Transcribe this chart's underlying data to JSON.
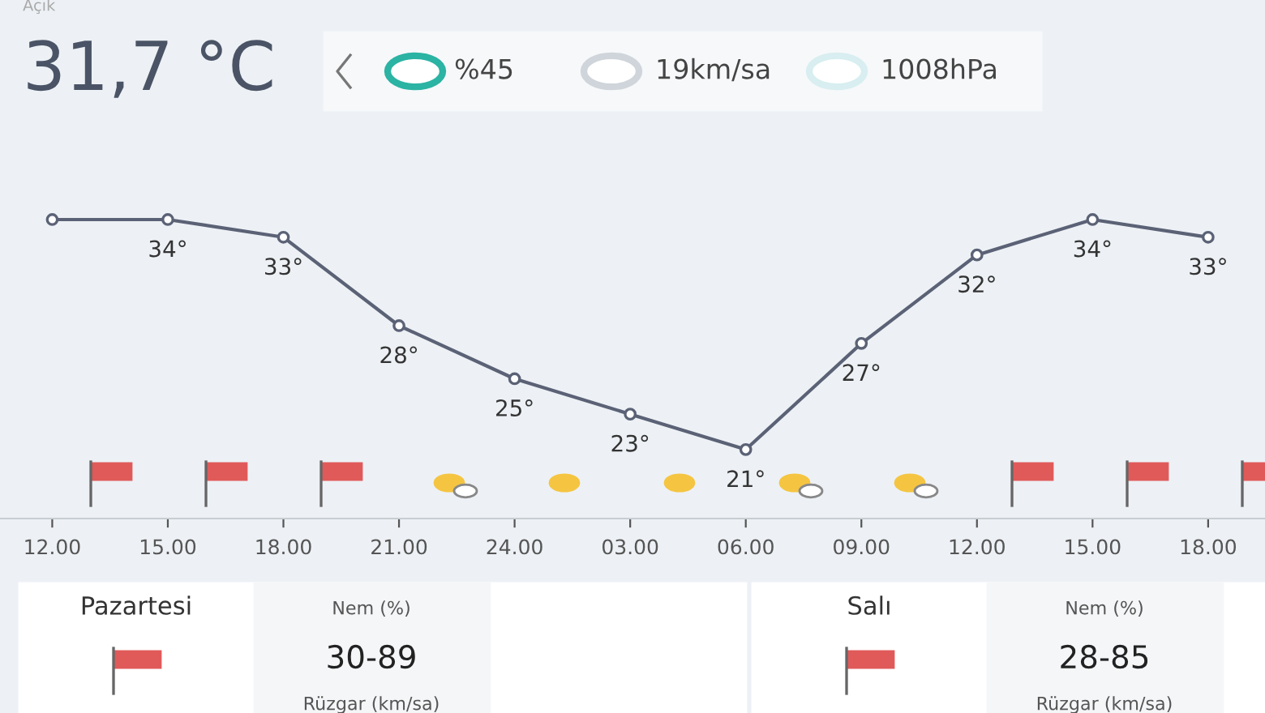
{
  "chart_data": {
    "type": "line",
    "categories": [
      "12.00",
      "15.00",
      "18.00",
      "21.00",
      "24.00",
      "03.00",
      "06.00",
      "09.00",
      "12.00",
      "15.00",
      "18.00"
    ],
    "series": [
      {
        "color": "#5b6276",
        "values": [
          34,
          34,
          33,
          28,
          25,
          23,
          21,
          27,
          32,
          34,
          33
        ],
        "value_labels": [
          null,
          "34°",
          "33°",
          "28°",
          "25°",
          "23°",
          "21°",
          "27°",
          "32°",
          "34°",
          "33°"
        ]
      }
    ],
    "marker": "circle",
    "line_style": "solid",
    "grid": false,
    "legend": false,
    "tick_labels": "x",
    "annotations": [
      "Açık",
      "31,7 °C",
      "%45",
      "19km/sa",
      "1008hPa",
      "Pazartesi",
      "Nem (%)",
      "30-89",
      "Rüzgar (km/sa)",
      "Salı",
      "Nem (%)",
      "28-85",
      "Rüzgar (km/sa)"
    ]
  }
}
